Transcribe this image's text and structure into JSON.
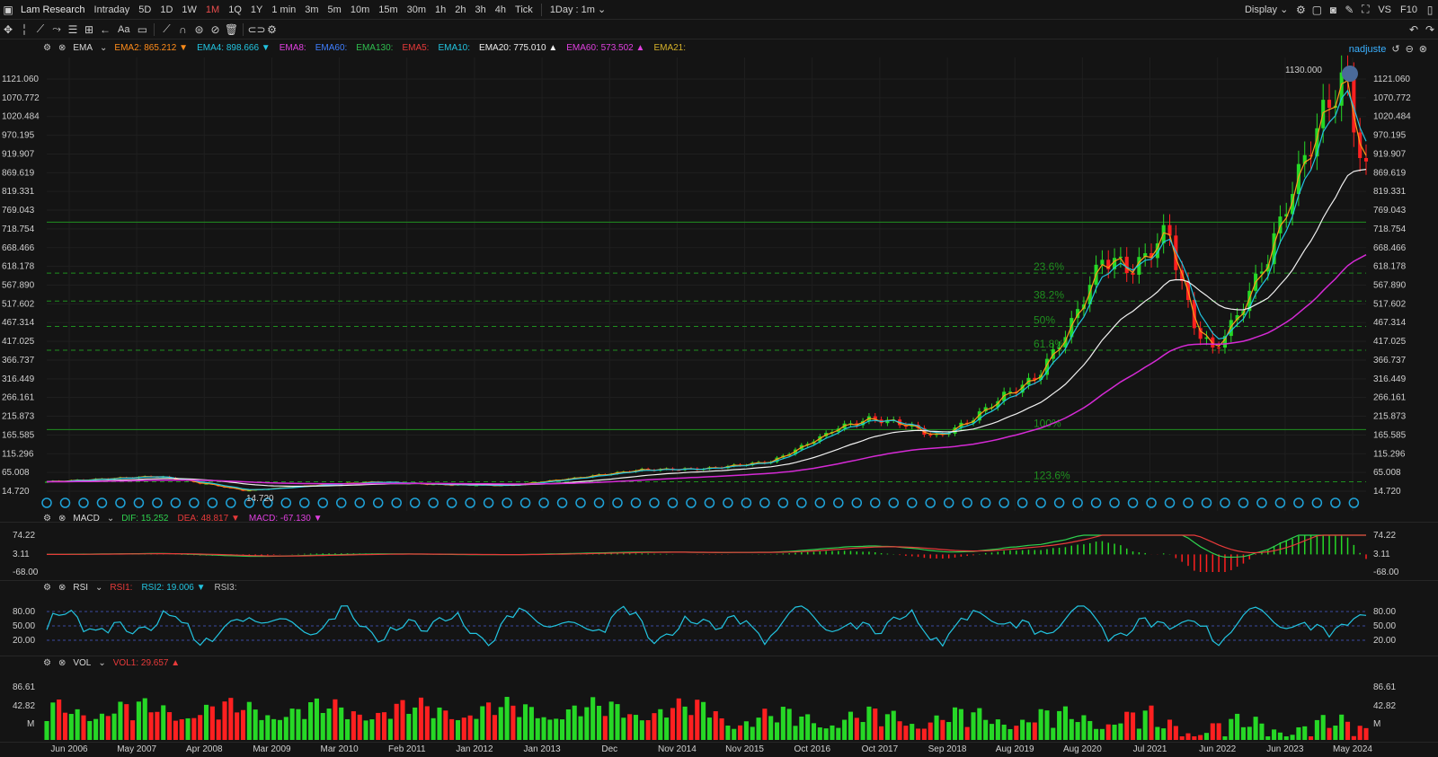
{
  "topbar": {
    "symbol": "Lam Research",
    "periods": [
      "Intraday",
      "5D",
      "1D",
      "1W",
      "1M",
      "1Q",
      "1Y",
      "1 min",
      "3m",
      "5m",
      "10m",
      "15m",
      "30m",
      "1h",
      "2h",
      "3h",
      "4h",
      "Tick"
    ],
    "active_period": "1M",
    "interval": "1Day : 1m",
    "display": "Display",
    "vs": "VS",
    "f10": "F10"
  },
  "toolbar": {
    "icons": [
      "crosshair-icon",
      "line-tool-icon",
      "trend-tool-icon",
      "fib-tool-icon",
      "pattern-tool-icon",
      "measure-tool-icon",
      "arrow-tool-icon",
      "text-tool-icon",
      "note-tool-icon",
      "brush-icon",
      "magnet-icon",
      "lock-icon",
      "hide-icon",
      "delete-icon",
      "link-icon",
      "settings-icon"
    ],
    "text_label": "Aa",
    "user": "nadjuste"
  },
  "main_legend": {
    "name": "EMA",
    "items": [
      {
        "label": "EMA2:",
        "value": "865.212",
        "color": "#ff8c1a",
        "arrow": "▼"
      },
      {
        "label": "EMA4:",
        "value": "898.666",
        "color": "#22c4e0",
        "arrow": "▼"
      },
      {
        "label": "EMA8:",
        "value": "",
        "color": "#e040e0",
        "arrow": ""
      },
      {
        "label": "EMA60:",
        "value": "",
        "color": "#3f7fff",
        "arrow": ""
      },
      {
        "label": "EMA130:",
        "value": "",
        "color": "#2fbf4f",
        "arrow": ""
      },
      {
        "label": "EMA5:",
        "value": "",
        "color": "#e83a3a",
        "arrow": ""
      },
      {
        "label": "EMA10:",
        "value": "",
        "color": "#22c4e0",
        "arrow": ""
      },
      {
        "label": "EMA20:",
        "value": "775.010",
        "color": "#eeeeee",
        "arrow": "▲"
      },
      {
        "label": "EMA60:",
        "value": "573.502",
        "color": "#e040e0",
        "arrow": "▲"
      },
      {
        "label": "EMA21:",
        "value": "",
        "color": "#d4b02a",
        "arrow": ""
      }
    ]
  },
  "main_yaxis": [
    "1121.060",
    "1070.772",
    "1020.484",
    "970.195",
    "919.907",
    "869.619",
    "819.331",
    "769.043",
    "718.754",
    "668.466",
    "618.178",
    "567.890",
    "517.602",
    "467.314",
    "417.025",
    "366.737",
    "316.449",
    "266.161",
    "215.873",
    "165.585",
    "115.296",
    "65.008",
    "14.720"
  ],
  "price_labels": {
    "high": "1130.000",
    "low": "14.720"
  },
  "fib_levels": [
    "23.6%",
    "38.2%",
    "50%",
    "61.8%",
    "100%",
    "123.6%"
  ],
  "xaxis": [
    "Jun 2006",
    "May 2007",
    "Apr 2008",
    "Mar 2009",
    "Mar 2010",
    "Feb 2011",
    "Jan 2012",
    "Jan 2013",
    "Dec",
    "Nov 2014",
    "Nov 2015",
    "Oct 2016",
    "Oct 2017",
    "Sep 2018",
    "Aug 2019",
    "Aug 2020",
    "Jul 2021",
    "Jun 2022",
    "Jun 2023",
    "May 2024"
  ],
  "macd": {
    "name": "MACD",
    "items": [
      {
        "label": "DIF:",
        "value": "15.252",
        "color": "#2fd24f",
        "arrow": ""
      },
      {
        "label": "DEA:",
        "value": "48.817",
        "color": "#e83a3a",
        "arrow": "▼"
      },
      {
        "label": "MACD:",
        "value": "-67.130",
        "color": "#e040e0",
        "arrow": "▼"
      }
    ],
    "yaxis": [
      "74.22",
      "3.11",
      "-68.00"
    ]
  },
  "rsi": {
    "name": "RSI",
    "items": [
      {
        "label": "RSI1:",
        "value": "",
        "color": "#e83a3a",
        "arrow": ""
      },
      {
        "label": "RSI2:",
        "value": "19.006",
        "color": "#22c4e0",
        "arrow": "▼"
      },
      {
        "label": "RSI3:",
        "value": "",
        "color": "#bbbbbb",
        "arrow": ""
      }
    ],
    "yaxis": [
      "80.00",
      "50.00",
      "20.00"
    ]
  },
  "vol": {
    "name": "VOL",
    "items": [
      {
        "label": "VOL1:",
        "value": "29.657",
        "color": "#e83a3a",
        "arrow": "▲"
      }
    ],
    "yaxis": [
      "86.61",
      "42.82",
      "M"
    ]
  },
  "colors": {
    "up": "#26d826",
    "down": "#ff2020",
    "ema_fast": "#ff9a1a",
    "ema_mid": "#22c4e0",
    "ema_slow": "#f0f0f0",
    "ema_long": "#d52ad5",
    "fib": "#1f8f1f"
  }
}
